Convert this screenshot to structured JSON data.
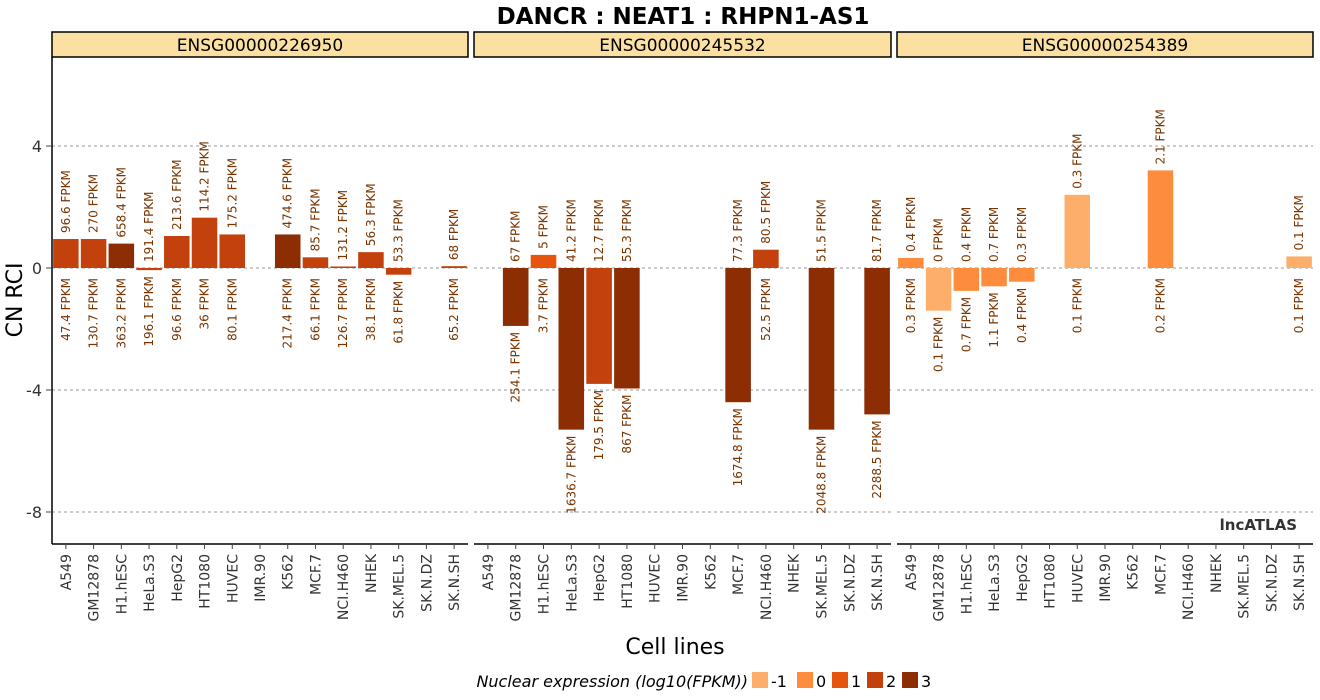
{
  "chart_data": {
    "type": "bar",
    "title": "DANCR : NEAT1 : RHPN1-AS1",
    "xlabel": "Cell lines",
    "ylabel": "CN RCI",
    "ylim": [
      -9,
      7
    ],
    "yticks": [
      4,
      0,
      -4,
      -8
    ],
    "grid": true,
    "watermark": "lncATLAS",
    "categories": [
      "A549",
      "GM12878",
      "H1.hESC",
      "HeLa.S3",
      "HepG2",
      "HT1080",
      "HUVEC",
      "IMR.90",
      "K562",
      "MCF.7",
      "NCI.H460",
      "NHEK",
      "SK.MEL.5",
      "SK.N.DZ",
      "SK.N.SH"
    ],
    "legend": {
      "title": "Nuclear expression (log10(FPKM))",
      "position": "bottom",
      "items": [
        {
          "label": "-1",
          "color": "#fdae6b"
        },
        {
          "label": "0",
          "color": "#fd8d3c"
        },
        {
          "label": "1",
          "color": "#e6550d"
        },
        {
          "label": "2",
          "color": "#c2410c"
        },
        {
          "label": "3",
          "color": "#8c2d04"
        }
      ]
    },
    "panels": [
      {
        "name": "ENSG00000226950",
        "bars": [
          {
            "cell": "A549",
            "value": 0.95,
            "level": 2,
            "top": "96.6 FPKM",
            "bottom": "47.4 FPKM"
          },
          {
            "cell": "GM12878",
            "value": 0.95,
            "level": 2,
            "top": "270 FPKM",
            "bottom": "130.7 FPKM"
          },
          {
            "cell": "H1.hESC",
            "value": 0.8,
            "level": 3,
            "top": "658.4 FPKM",
            "bottom": "363.2 FPKM"
          },
          {
            "cell": "HeLa.S3",
            "value": -0.07,
            "level": 2,
            "top": "191.4 FPKM",
            "bottom": "196.1 FPKM"
          },
          {
            "cell": "HepG2",
            "value": 1.05,
            "level": 2,
            "top": "213.6 FPKM",
            "bottom": "96.6 FPKM"
          },
          {
            "cell": "HT1080",
            "value": 1.65,
            "level": 2,
            "top": "114.2 FPKM",
            "bottom": "36 FPKM"
          },
          {
            "cell": "HUVEC",
            "value": 1.1,
            "level": 2,
            "top": "175.2 FPKM",
            "bottom": "80.1 FPKM"
          },
          {
            "cell": "K562",
            "value": 1.1,
            "level": 3,
            "top": "474.6 FPKM",
            "bottom": "217.4 FPKM"
          },
          {
            "cell": "MCF.7",
            "value": 0.35,
            "level": 2,
            "top": "85.7 FPKM",
            "bottom": "66.1 FPKM"
          },
          {
            "cell": "NCI.H460",
            "value": 0.05,
            "level": 2,
            "top": "131.2 FPKM",
            "bottom": "126.7 FPKM"
          },
          {
            "cell": "NHEK",
            "value": 0.52,
            "level": 2,
            "top": "56.3 FPKM",
            "bottom": "38.1 FPKM"
          },
          {
            "cell": "SK.MEL.5",
            "value": -0.22,
            "level": 2,
            "top": "53.3 FPKM",
            "bottom": "61.8 FPKM"
          },
          {
            "cell": "SK.N.SH",
            "value": 0.06,
            "level": 2,
            "top": "68 FPKM",
            "bottom": "65.2 FPKM"
          }
        ]
      },
      {
        "name": "ENSG00000245532",
        "bars": [
          {
            "cell": "GM12878",
            "value": -1.9,
            "level": 3,
            "top": "67 FPKM",
            "bottom": "254.1 FPKM"
          },
          {
            "cell": "H1.hESC",
            "value": 0.43,
            "level": 1,
            "top": "5 FPKM",
            "bottom": "3.7 FPKM"
          },
          {
            "cell": "HeLa.S3",
            "value": -5.3,
            "level": 3,
            "top": "41.2 FPKM",
            "bottom": "1636.7 FPKM"
          },
          {
            "cell": "HepG2",
            "value": -3.8,
            "level": 2,
            "top": "12.7 FPKM",
            "bottom": "179.5 FPKM"
          },
          {
            "cell": "HT1080",
            "value": -3.95,
            "level": 3,
            "top": "55.3 FPKM",
            "bottom": "867 FPKM"
          },
          {
            "cell": "MCF.7",
            "value": -4.4,
            "level": 3,
            "top": "77.3 FPKM",
            "bottom": "1674.8 FPKM"
          },
          {
            "cell": "NCI.H460",
            "value": 0.6,
            "level": 2,
            "top": "80.5 FPKM",
            "bottom": "52.5 FPKM"
          },
          {
            "cell": "SK.MEL.5",
            "value": -5.3,
            "level": 3,
            "top": "51.5 FPKM",
            "bottom": "2048.8 FPKM"
          },
          {
            "cell": "SK.N.SH",
            "value": -4.8,
            "level": 3,
            "top": "81.7 FPKM",
            "bottom": "2288.5 FPKM"
          }
        ]
      },
      {
        "name": "ENSG00000254389",
        "bars": [
          {
            "cell": "A549",
            "value": 0.33,
            "level": 0,
            "top": "0.4 FPKM",
            "bottom": "0.3 FPKM"
          },
          {
            "cell": "GM12878",
            "value": -1.4,
            "level": -1,
            "top": "0 FPKM",
            "bottom": "0.1 FPKM"
          },
          {
            "cell": "H1.hESC",
            "value": -0.75,
            "level": 0,
            "top": "0.4 FPKM",
            "bottom": "0.7 FPKM"
          },
          {
            "cell": "HeLa.S3",
            "value": -0.6,
            "level": 0,
            "top": "0.7 FPKM",
            "bottom": "1.1 FPKM"
          },
          {
            "cell": "HepG2",
            "value": -0.45,
            "level": 0,
            "top": "0.3 FPKM",
            "bottom": "0.4 FPKM"
          },
          {
            "cell": "HUVEC",
            "value": 2.4,
            "level": -1,
            "top": "0.3 FPKM",
            "bottom": "0.1 FPKM"
          },
          {
            "cell": "MCF.7",
            "value": 3.2,
            "level": 0,
            "top": "2.1 FPKM",
            "bottom": "0.2 FPKM"
          },
          {
            "cell": "SK.N.SH",
            "value": 0.38,
            "level": -1,
            "top": "0.1 FPKM",
            "bottom": "0.1 FPKM"
          }
        ]
      }
    ]
  }
}
